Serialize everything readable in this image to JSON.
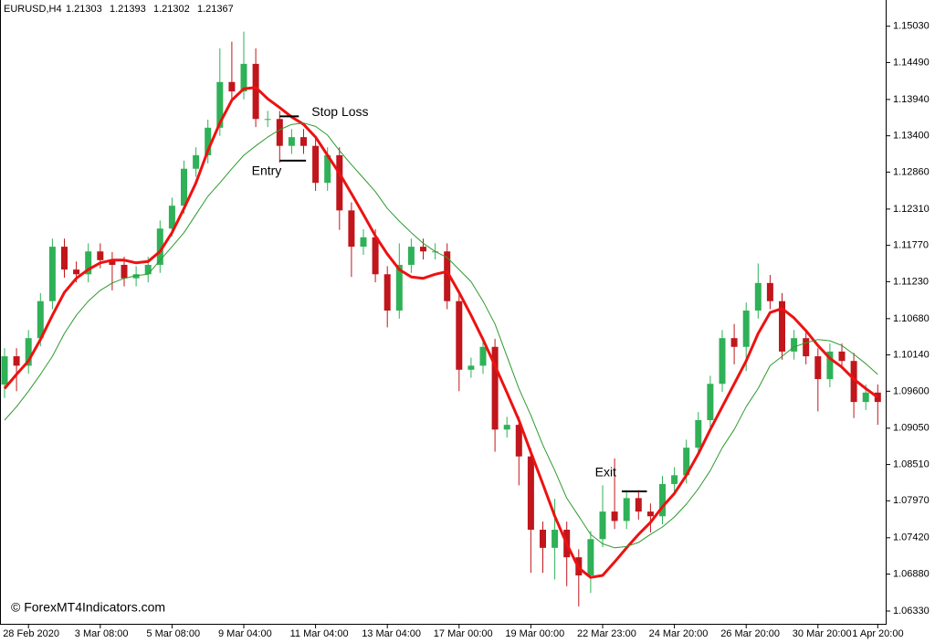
{
  "chart_data": {
    "type": "candlestick",
    "title": "EURUSD,H4",
    "header_values": [
      1.21303,
      1.21393,
      1.21302,
      1.21367
    ],
    "watermark": "© ForexMT4Indicators.com",
    "categories": [
      null,
      null,
      "28 Feb 2020",
      null,
      null,
      null,
      null,
      null,
      "3 Mar 08:00",
      null,
      null,
      null,
      null,
      null,
      "5 Mar 08:00",
      null,
      null,
      null,
      null,
      null,
      "9 Mar 04:00",
      null,
      null,
      null,
      null,
      null,
      "11 Mar 04:00",
      null,
      null,
      null,
      null,
      null,
      "13 Mar 04:00",
      null,
      null,
      null,
      null,
      null,
      "17 Mar 00:00",
      null,
      null,
      null,
      null,
      null,
      "19 Mar 00:00",
      null,
      null,
      null,
      null,
      null,
      "22 Mar 23:00",
      null,
      null,
      null,
      null,
      null,
      "24 Mar 20:00",
      null,
      null,
      null,
      null,
      null,
      "26 Mar 20:00",
      null,
      null,
      null,
      null,
      null,
      "30 Mar 20:00",
      null,
      null,
      null,
      null,
      "1 Apr 20:00"
    ],
    "open": [
      1.097,
      1.1012,
      1.0998,
      1.1039,
      1.1094,
      1.1175,
      1.1141,
      1.1134,
      1.1168,
      1.1155,
      1.1148,
      1.1128,
      1.1134,
      1.1148,
      1.1202,
      1.1236,
      1.1291,
      1.1311,
      1.1352,
      1.142,
      1.1406,
      1.1447,
      1.1365,
      1.1365,
      1.1325,
      1.1338,
      1.1325,
      1.127,
      1.1311,
      1.1229,
      1.1175,
      1.1189,
      1.1134,
      1.108,
      1.1148,
      1.1175,
      1.1168,
      1.1168,
      1.1094,
      1.0992,
      1.0998,
      1.1026,
      1.0903,
      1.091,
      1.0863,
      1.0754,
      1.0727,
      1.0754,
      1.0713,
      1.0686,
      1.074,
      1.0781,
      1.0767,
      1.0801,
      1.0781,
      1.0774,
      1.0822,
      1.0835,
      1.0876,
      1.0917,
      1.0971,
      1.1039,
      1.1026,
      1.108,
      1.1121,
      1.1094,
      1.1019,
      1.1039,
      1.1012,
      1.0978,
      1.1019,
      1.1005,
      1.0944,
      1.0958
    ],
    "high": [
      1.1024,
      1.1024,
      1.1051,
      1.1106,
      1.1187,
      1.1187,
      1.1153,
      1.118,
      1.118,
      1.1167,
      1.116,
      1.1146,
      1.116,
      1.1214,
      1.1248,
      1.1303,
      1.1323,
      1.1364,
      1.147,
      1.148,
      1.1495,
      1.147,
      1.1377,
      1.1377,
      1.135,
      1.135,
      1.1337,
      1.1323,
      1.1323,
      1.1241,
      1.1201,
      1.1201,
      1.1146,
      1.118,
      1.1187,
      1.1187,
      1.118,
      1.118,
      1.1106,
      1.101,
      1.1038,
      1.1038,
      1.0922,
      1.0922,
      1.0875,
      1.0766,
      1.08,
      1.0766,
      1.0725,
      1.0752,
      1.082,
      1.086,
      1.0813,
      1.0813,
      1.0793,
      1.0834,
      1.0847,
      1.0888,
      1.0929,
      1.0983,
      1.1051,
      1.106,
      1.1092,
      1.115,
      1.1133,
      1.1106,
      1.1051,
      1.1051,
      1.1024,
      1.1031,
      1.1031,
      1.1017,
      1.097,
      1.097
    ],
    "low": [
      1.095,
      1.096,
      1.0986,
      1.1027,
      1.1082,
      1.1129,
      1.1122,
      1.1122,
      1.1143,
      1.111,
      1.1116,
      1.1116,
      1.1122,
      1.1136,
      1.119,
      1.1224,
      1.1279,
      1.1299,
      1.134,
      1.1394,
      1.1394,
      1.1353,
      1.1353,
      1.13,
      1.1313,
      1.1313,
      1.1258,
      1.1258,
      1.12,
      1.113,
      1.1163,
      1.1122,
      1.1055,
      1.1068,
      1.1136,
      1.1156,
      1.1156,
      1.1082,
      1.096,
      1.098,
      1.0986,
      1.087,
      1.0891,
      1.082,
      1.069,
      1.069,
      1.068,
      1.067,
      1.064,
      1.066,
      1.0728,
      1.0755,
      1.0755,
      1.0769,
      1.075,
      1.0762,
      1.081,
      1.0823,
      1.0864,
      1.0905,
      1.0959,
      1.1,
      1.099,
      1.1068,
      1.1082,
      1.1007,
      1.1007,
      1.1,
      1.093,
      1.0966,
      1.0993,
      1.092,
      1.0932,
      1.091
    ],
    "close": [
      1.1012,
      1.0998,
      1.1039,
      1.1094,
      1.1175,
      1.1141,
      1.1134,
      1.1168,
      1.1155,
      1.1148,
      1.1128,
      1.1134,
      1.1148,
      1.1202,
      1.1236,
      1.1291,
      1.1311,
      1.1352,
      1.142,
      1.1406,
      1.1447,
      1.1365,
      1.1365,
      1.1325,
      1.1338,
      1.1325,
      1.127,
      1.1311,
      1.1229,
      1.1175,
      1.1189,
      1.1134,
      1.108,
      1.1148,
      1.1175,
      1.1168,
      1.1168,
      1.1094,
      1.0992,
      1.0998,
      1.1026,
      1.0903,
      1.091,
      1.0863,
      1.0754,
      1.0727,
      1.0754,
      1.0713,
      1.0686,
      1.074,
      1.0781,
      1.0767,
      1.0801,
      1.0781,
      1.0774,
      1.0822,
      1.0835,
      1.0876,
      1.0917,
      1.0971,
      1.1039,
      1.1026,
      1.108,
      1.1121,
      1.1094,
      1.1019,
      1.1039,
      1.1012,
      1.0978,
      1.1019,
      1.1005,
      1.0944,
      1.0958,
      1.0944
    ],
    "up_color": "#2fb157",
    "down_color": "#c0161c",
    "lines": [
      {
        "color": "#ee1111",
        "line_width": 3,
        "values": [
          1.0964,
          1.0985,
          1.1005,
          1.1037,
          1.1073,
          1.1107,
          1.1128,
          1.1141,
          1.1151,
          1.1155,
          1.1155,
          1.1151,
          1.1153,
          1.1168,
          1.1196,
          1.1232,
          1.127,
          1.1318,
          1.1359,
          1.1393,
          1.141,
          1.1412,
          1.1395,
          1.1382,
          1.1368,
          1.1357,
          1.1338,
          1.1311,
          1.1284,
          1.1254,
          1.1223,
          1.1191,
          1.1164,
          1.1141,
          1.113,
          1.1128,
          1.1134,
          1.1138,
          1.1107,
          1.1073,
          1.1037,
          1.0998,
          1.0958,
          1.0917,
          1.0869,
          1.0822,
          1.0774,
          1.0733,
          1.0697,
          1.0683,
          1.0686,
          1.0706,
          1.0727,
          1.0747,
          1.0765,
          1.0788,
          1.0808,
          1.0835,
          1.0867,
          1.0903,
          1.0937,
          1.0971,
          1.1005,
          1.1046,
          1.1077,
          1.1083,
          1.1069,
          1.105,
          1.1028,
          1.1009,
          1.0996,
          1.0978,
          1.0964,
          1.0951
        ]
      },
      {
        "color": "#2e9a2e",
        "line_width": 1,
        "values": [
          1.0917,
          1.0937,
          1.096,
          1.0985,
          1.1012,
          1.1046,
          1.1073,
          1.1094,
          1.111,
          1.1121,
          1.1128,
          1.1132,
          1.1134,
          1.1155,
          1.1175,
          1.1196,
          1.1223,
          1.125,
          1.127,
          1.1291,
          1.1311,
          1.1325,
          1.1338,
          1.1349,
          1.1357,
          1.1359,
          1.1354,
          1.1341,
          1.1318,
          1.1297,
          1.1277,
          1.1257,
          1.1232,
          1.1213,
          1.1196,
          1.118,
          1.1168,
          1.1159,
          1.1141,
          1.1123,
          1.1094,
          1.106,
          1.1012,
          1.0964,
          1.0924,
          1.088,
          1.0842,
          1.0801,
          1.0774,
          1.0747,
          1.0733,
          1.0727,
          1.0729,
          1.0735,
          1.0747,
          1.0758,
          1.0773,
          1.0792,
          1.0815,
          1.0842,
          1.0876,
          1.0903,
          1.0937,
          1.0964,
          1.0998,
          1.1012,
          1.1026,
          1.1032,
          1.1037,
          1.1035,
          1.1028,
          1.1015,
          1.1001,
          1.0985
        ]
      }
    ],
    "annotations": [
      {
        "label": "Stop Loss",
        "value": 1.1369,
        "from_index": 23,
        "to_index": 24.6,
        "position": "right"
      },
      {
        "label": "Entry",
        "value": 1.1303,
        "from_index": 23,
        "to_index": 25.2,
        "position": "left"
      },
      {
        "label": "Exit",
        "value": 1.0811,
        "from_index": 51.6,
        "to_index": 53.7,
        "position": "above"
      }
    ],
    "ylim": [
      1.0614,
      1.1542
    ],
    "yticks": [
      {
        "value": 1.1503,
        "label": "1.15030"
      },
      {
        "value": 1.1449,
        "label": "1.14490"
      },
      {
        "value": 1.1394,
        "label": "1.13940"
      },
      {
        "value": 1.134,
        "label": "1.13400"
      },
      {
        "value": 1.1286,
        "label": "1.12860"
      },
      {
        "value": 1.1231,
        "label": "1.12310"
      },
      {
        "value": 1.1177,
        "label": "1.11770"
      },
      {
        "value": 1.1123,
        "label": "1.11230"
      },
      {
        "value": 1.1068,
        "label": "1.10680"
      },
      {
        "value": 1.1014,
        "label": "1.10140"
      },
      {
        "value": 1.096,
        "label": "1.09600"
      },
      {
        "value": 1.0905,
        "label": "1.09050"
      },
      {
        "value": 1.0851,
        "label": "1.08510"
      },
      {
        "value": 1.0797,
        "label": "1.07970"
      },
      {
        "value": 1.0742,
        "label": "1.07420"
      },
      {
        "value": 1.0688,
        "label": "1.06880"
      },
      {
        "value": 1.0633,
        "label": "1.06330"
      }
    ]
  }
}
